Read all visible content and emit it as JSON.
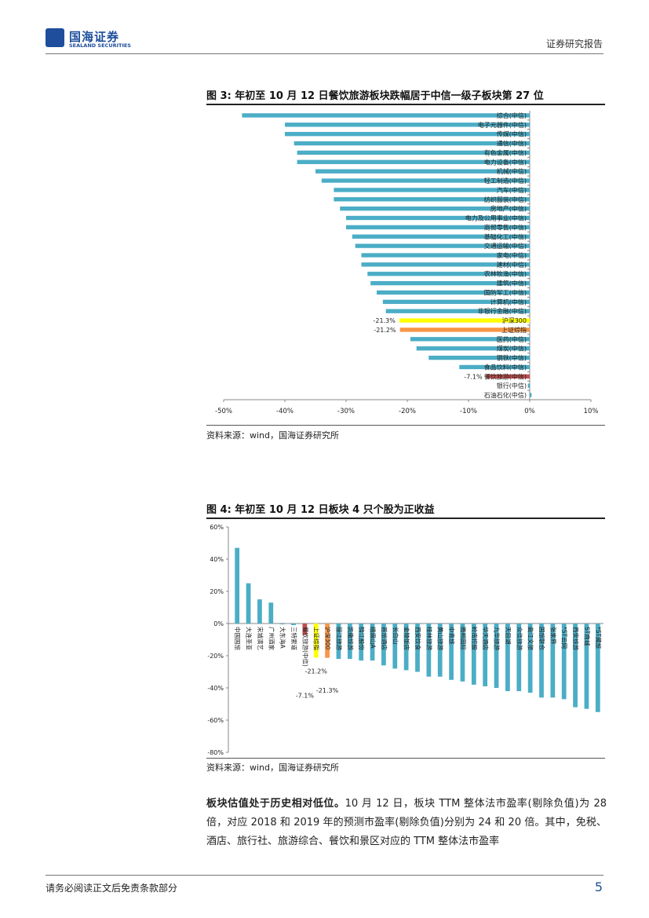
{
  "header": {
    "logo_text": "国海证券",
    "logo_sub": "SEALAND SECURITIES",
    "report_type": "证券研究报告"
  },
  "figure3": {
    "title": "图 3:  年初至 10 月 12 日餐饮旅游板块跌幅居于中信一级子板块第 27 位",
    "source": "资料来源：wind，国海证券研究所"
  },
  "figure4": {
    "title": "图 4:  年初至 10 月 12 日板块 4 只个股为正收益",
    "source": "资料来源：wind，国海证券研究所"
  },
  "colors": {
    "bar": "#4badc6",
    "highlight_red": "#c0504d",
    "highlight_yellow": "#ffff00",
    "highlight_orange": "#f79646",
    "brand": "#1e4e9c"
  },
  "chart_data": [
    {
      "type": "bar",
      "orientation": "horizontal",
      "title": "图 3:  年初至 10 月 12 日餐饮旅游板块跌幅居于中信一级子板块第 27 位",
      "xlim": [
        -0.5,
        0.1
      ],
      "x_ticks": [
        "-50%",
        "-40%",
        "-30%",
        "-20%",
        "-10%",
        "0%",
        "10%"
      ],
      "categories": [
        "综合(中信)",
        "电子元器件(中信)",
        "传媒(中信)",
        "通信(中信)",
        "有色金属(中信)",
        "电力设备(中信)",
        "机械(中信)",
        "轻工制造(中信)",
        "汽车(中信)",
        "纺织服装(中信)",
        "房地产(中信)",
        "电力及公用事业(中信)",
        "商贸零售(中信)",
        "基础化工(中信)",
        "交通运输(中信)",
        "家电(中信)",
        "建材(中信)",
        "农林牧渔(中信)",
        "建筑(中信)",
        "国防军工(中信)",
        "计算机(中信)",
        "非银行金融(中信)",
        "沪深300",
        "上证综指",
        "医药(中信)",
        "煤炭(中信)",
        "钢铁(中信)",
        "食品饮料(中信)",
        "餐饮旅游(中信)",
        "银行(中信)",
        "石油石化(中信)"
      ],
      "values": [
        -0.47,
        -0.4,
        -0.4,
        -0.385,
        -0.38,
        -0.38,
        -0.35,
        -0.34,
        -0.32,
        -0.32,
        -0.31,
        -0.3,
        -0.3,
        -0.29,
        -0.285,
        -0.275,
        -0.275,
        -0.265,
        -0.26,
        -0.25,
        -0.24,
        -0.235,
        -0.213,
        -0.212,
        -0.195,
        -0.185,
        -0.165,
        -0.115,
        -0.071,
        -0.003,
        0.003
      ],
      "highlights": {
        "沪深300": "yellow",
        "上证综指": "orange",
        "餐饮旅游(中信)": "red"
      },
      "data_labels": [
        {
          "category": "沪深300",
          "text": "-21.3%"
        },
        {
          "category": "上证综指",
          "text": "-21.2%"
        },
        {
          "category": "餐饮旅游(中信)",
          "text": "-7.1%"
        }
      ]
    },
    {
      "type": "bar",
      "orientation": "vertical",
      "title": "图 4:  年初至 10 月 12 日板块 4 只个股为正收益",
      "ylim": [
        -0.8,
        0.6
      ],
      "y_ticks": [
        "60%",
        "40%",
        "20%",
        "0%",
        "-20%",
        "-40%",
        "-60%",
        "-80%"
      ],
      "categories": [
        "中国国旅",
        "大连圣亚",
        "宋城演艺",
        "广州酒家",
        "大东海A",
        "三特索道",
        "餐饮旅游(中信)",
        "上证综指",
        "沪深300",
        "丽江旅游",
        "凯撒旅游",
        "锦江股份",
        "峨眉山A",
        "首旅酒店",
        "长白山",
        "金陵饭店",
        "西安饮食",
        "桂林旅游",
        "黄山旅游",
        "中青旅",
        "腾邦国际",
        "岭南控股",
        "华天酒店",
        "九华旅游",
        "天目湖",
        "众信旅游",
        "曲江文旅",
        "国旅联合",
        "张家界",
        "*ST云网",
        "西安旅游",
        "ST商城",
        "*ST藏旅"
      ],
      "values": [
        0.47,
        0.25,
        0.15,
        0.13,
        -0.005,
        -0.01,
        -0.071,
        -0.212,
        -0.213,
        -0.22,
        -0.22,
        -0.23,
        -0.23,
        -0.26,
        -0.28,
        -0.29,
        -0.3,
        -0.33,
        -0.33,
        -0.35,
        -0.36,
        -0.38,
        -0.39,
        -0.4,
        -0.42,
        -0.42,
        -0.43,
        -0.46,
        -0.46,
        -0.47,
        -0.52,
        -0.53,
        -0.55
      ],
      "highlights": {
        "餐饮旅游(中信)": "red",
        "上证综指": "yellow",
        "沪深300": "orange"
      },
      "data_labels": [
        {
          "category": "餐饮旅游(中信)",
          "text": "-7.1%"
        },
        {
          "category": "上证综指",
          "text": "-21.2%"
        },
        {
          "category": "沪深300",
          "text": "-21.3%"
        }
      ]
    }
  ],
  "body": {
    "bold_lead": "板块估值处于历史相对低位。",
    "text": "10 月 12 日，板块 TTM 整体法市盈率(剔除负值)为 28 倍，对应 2018 和 2019 年的预测市盈率(剔除负值)分别为 24 和 20 倍。其中，免税、酒店、旅行社、旅游综合、餐饮和景区对应的 TTM 整体法市盈率"
  },
  "footer": {
    "disclaimer": "请务必阅读正文后免责条款部分",
    "page_number": "5"
  }
}
